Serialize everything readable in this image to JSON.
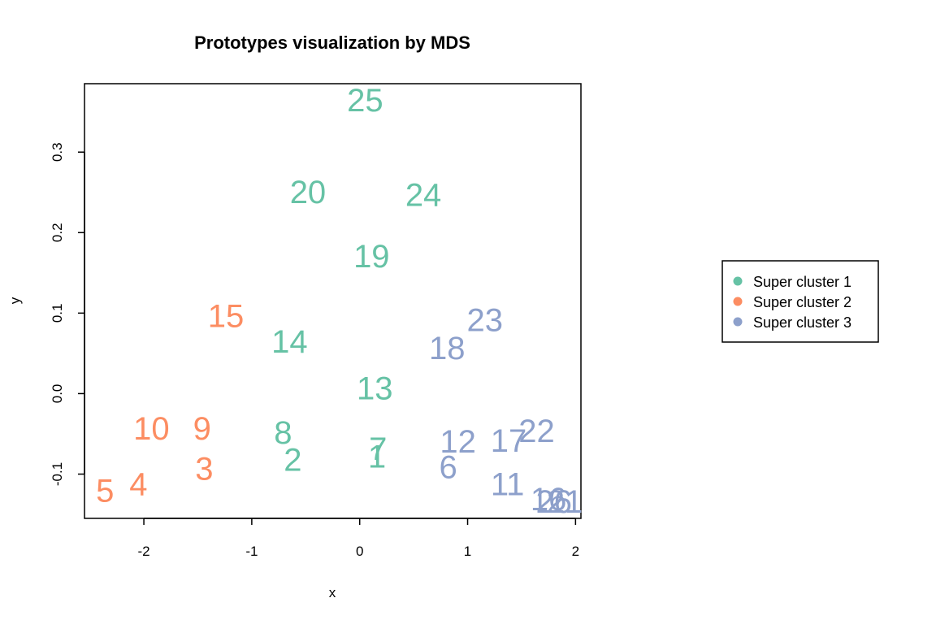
{
  "colors": {
    "Super cluster 1": "#66c2a5",
    "Super cluster 2": "#fc8d62",
    "Super cluster 3": "#8da0cb"
  },
  "chart_data": {
    "type": "scatter",
    "title": "Prototypes visualization by MDS",
    "xlabel": "x",
    "ylabel": "y",
    "xlim": [
      -2.55,
      2.05
    ],
    "ylim": [
      -0.155,
      0.385
    ],
    "xticks": [
      -2,
      -1,
      0,
      1,
      2
    ],
    "yticks": [
      -0.1,
      0.0,
      0.1,
      0.2,
      0.3
    ],
    "ytick_labels": [
      "-0.1",
      "0.0",
      "0.1",
      "0.2",
      "0.3"
    ],
    "grid": false,
    "legend_position": "right",
    "legend": [
      "Super cluster 1",
      "Super cluster 2",
      "Super cluster 3"
    ],
    "series": [
      {
        "name": "Super cluster 1",
        "points": [
          {
            "label": "25",
            "x": 0.05,
            "y": 0.365
          },
          {
            "label": "20",
            "x": -0.48,
            "y": 0.251
          },
          {
            "label": "24",
            "x": 0.59,
            "y": 0.247
          },
          {
            "label": "19",
            "x": 0.11,
            "y": 0.171
          },
          {
            "label": "14",
            "x": -0.65,
            "y": 0.065
          },
          {
            "label": "13",
            "x": 0.14,
            "y": 0.007
          },
          {
            "label": "8",
            "x": -0.71,
            "y": -0.048
          },
          {
            "label": "2",
            "x": -0.62,
            "y": -0.082
          },
          {
            "label": "7",
            "x": 0.17,
            "y": -0.068
          },
          {
            "label": "1",
            "x": 0.16,
            "y": -0.078
          }
        ]
      },
      {
        "name": "Super cluster 2",
        "points": [
          {
            "label": "15",
            "x": -1.24,
            "y": 0.097
          },
          {
            "label": "10",
            "x": -1.93,
            "y": -0.043
          },
          {
            "label": "9",
            "x": -1.46,
            "y": -0.043
          },
          {
            "label": "3",
            "x": -1.44,
            "y": -0.093
          },
          {
            "label": "4",
            "x": -2.05,
            "y": -0.112
          },
          {
            "label": "5",
            "x": -2.36,
            "y": -0.12
          }
        ]
      },
      {
        "name": "Super cluster 3",
        "points": [
          {
            "label": "23",
            "x": 1.16,
            "y": 0.092
          },
          {
            "label": "18",
            "x": 0.81,
            "y": 0.057
          },
          {
            "label": "22",
            "x": 1.64,
            "y": -0.046
          },
          {
            "label": "17",
            "x": 1.38,
            "y": -0.058
          },
          {
            "label": "12",
            "x": 0.91,
            "y": -0.059
          },
          {
            "label": "6",
            "x": 0.82,
            "y": -0.091
          },
          {
            "label": "11",
            "x": 1.37,
            "y": -0.112
          },
          {
            "label": "16",
            "x": 1.75,
            "y": -0.131
          },
          {
            "label": "21",
            "x": 1.9,
            "y": -0.134
          },
          {
            "label": "26",
            "x": 1.8,
            "y": -0.134
          }
        ]
      }
    ]
  }
}
